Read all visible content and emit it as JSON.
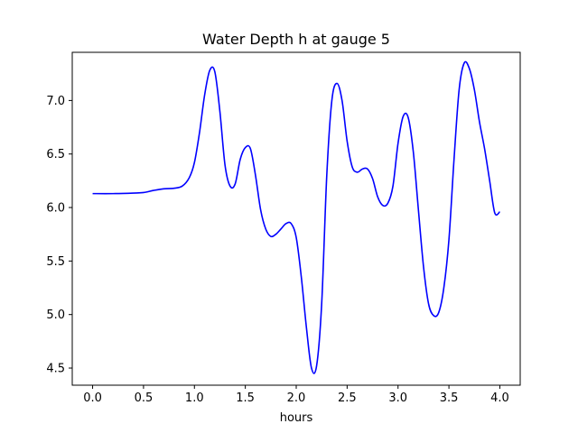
{
  "chart_data": {
    "type": "line",
    "title": "Water Depth h at gauge 5",
    "xlabel": "hours",
    "ylabel": "",
    "xlim": [
      -0.2,
      4.2
    ],
    "ylim": [
      4.34,
      7.45
    ],
    "xticks": [
      0.0,
      0.5,
      1.0,
      1.5,
      2.0,
      2.5,
      3.0,
      3.5,
      4.0
    ],
    "xtick_labels": [
      "0.0",
      "0.5",
      "1.0",
      "1.5",
      "2.0",
      "2.5",
      "3.0",
      "3.5",
      "4.0"
    ],
    "yticks": [
      4.5,
      5.0,
      5.5,
      6.0,
      6.5,
      7.0
    ],
    "ytick_labels": [
      "4.5",
      "5.0",
      "5.5",
      "6.0",
      "6.5",
      "7.0"
    ],
    "grid": false,
    "series": [
      {
        "color": "#0000ff",
        "x": [
          0.0,
          0.2,
          0.4,
          0.5,
          0.6,
          0.7,
          0.8,
          0.88,
          0.95,
          1.0,
          1.05,
          1.1,
          1.15,
          1.2,
          1.25,
          1.3,
          1.35,
          1.4,
          1.45,
          1.5,
          1.55,
          1.6,
          1.65,
          1.7,
          1.75,
          1.8,
          1.85,
          1.9,
          1.95,
          2.0,
          2.05,
          2.1,
          2.15,
          2.2,
          2.25,
          2.3,
          2.35,
          2.4,
          2.45,
          2.5,
          2.55,
          2.6,
          2.65,
          2.7,
          2.75,
          2.8,
          2.85,
          2.9,
          2.95,
          3.0,
          3.05,
          3.1,
          3.15,
          3.2,
          3.25,
          3.3,
          3.35,
          3.4,
          3.45,
          3.5,
          3.55,
          3.6,
          3.65,
          3.7,
          3.75,
          3.8,
          3.85,
          3.9,
          3.95,
          4.0
        ],
        "y": [
          6.13,
          6.13,
          6.135,
          6.14,
          6.16,
          6.175,
          6.18,
          6.2,
          6.28,
          6.42,
          6.7,
          7.05,
          7.28,
          7.27,
          6.9,
          6.4,
          6.2,
          6.22,
          6.45,
          6.56,
          6.55,
          6.3,
          5.98,
          5.8,
          5.73,
          5.75,
          5.8,
          5.85,
          5.85,
          5.72,
          5.35,
          4.88,
          4.5,
          4.52,
          5.1,
          6.3,
          7.0,
          7.16,
          7.0,
          6.62,
          6.38,
          6.33,
          6.36,
          6.36,
          6.27,
          6.1,
          6.02,
          6.04,
          6.2,
          6.6,
          6.85,
          6.84,
          6.52,
          5.98,
          5.45,
          5.1,
          4.99,
          5.02,
          5.25,
          5.7,
          6.45,
          7.1,
          7.35,
          7.3,
          7.1,
          6.8,
          6.55,
          6.25,
          5.95,
          5.96
        ]
      }
    ]
  }
}
